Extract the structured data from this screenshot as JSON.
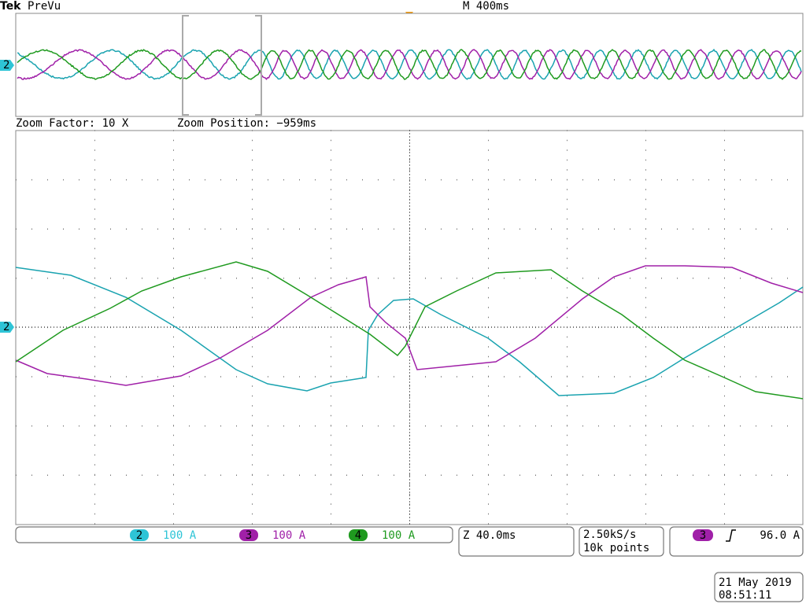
{
  "header": {
    "brand": "Tek",
    "mode": "PreVu",
    "timebase": "M 400ms"
  },
  "zoom": {
    "factor": "Zoom Factor: 10 X",
    "position": "Zoom Position: −959ms"
  },
  "markers": {
    "overview": "2",
    "main": "2"
  },
  "channels": [
    {
      "number": "2",
      "scale": "100 A"
    },
    {
      "number": "3",
      "scale": "100 A"
    },
    {
      "number": "4",
      "scale": "100 A"
    }
  ],
  "zoom_time": "Z 40.0ms",
  "acquisition": {
    "rate": "2.50kS/s",
    "length": "10k points"
  },
  "trigger": {
    "channel": "3",
    "level": "96.0 A"
  },
  "timestamp": {
    "date": "21 May 2019",
    "time": "08:51:11"
  }
}
